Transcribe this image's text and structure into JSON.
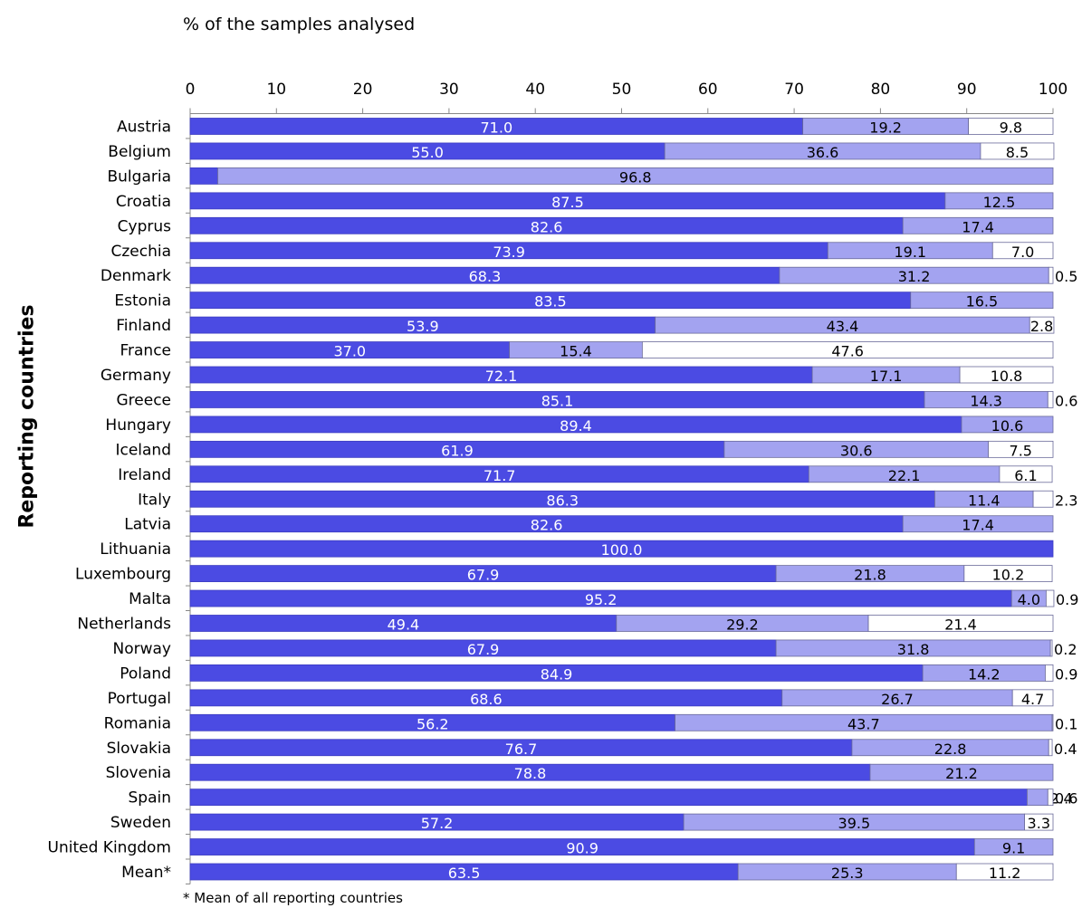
{
  "chart_data": {
    "type": "bar",
    "orientation": "horizontal",
    "stacked": true,
    "title": "",
    "xlabel": "% of the samples analysed",
    "ylabel": "Reporting countries",
    "xlim": [
      0,
      100
    ],
    "xticks": [
      0,
      10,
      20,
      30,
      40,
      50,
      60,
      70,
      80,
      90,
      100
    ],
    "grid": false,
    "legend": "none",
    "footnote": "* Mean of all reporting countries",
    "categories": [
      "Austria",
      "Belgium",
      "Bulgaria",
      "Croatia",
      "Cyprus",
      "Czechia",
      "Denmark",
      "Estonia",
      "Finland",
      "France",
      "Germany",
      "Greece",
      "Hungary",
      "Iceland",
      "Ireland",
      "Italy",
      "Latvia",
      "Lithuania",
      "Luxembourg",
      "Malta",
      "Netherlands",
      "Norway",
      "Poland",
      "Portugal",
      "Romania",
      "Slovakia",
      "Slovenia",
      "Spain",
      "Sweden",
      "United Kingdom",
      "Mean*"
    ],
    "series": [
      {
        "color": "#4b4be3",
        "values": [
          71.0,
          55.0,
          3.2,
          87.5,
          82.6,
          73.9,
          68.3,
          83.5,
          53.9,
          37.0,
          72.1,
          85.1,
          89.4,
          61.9,
          71.7,
          86.3,
          82.6,
          100.0,
          67.9,
          95.2,
          49.4,
          67.9,
          84.9,
          68.6,
          56.2,
          76.7,
          78.8,
          97.0,
          57.2,
          90.9,
          63.5
        ],
        "labels": [
          "71.0",
          "55.0",
          "",
          "87.5",
          "82.6",
          "73.9",
          "68.3",
          "83.5",
          "53.9",
          "37.0",
          "72.1",
          "85.1",
          "89.4",
          "61.9",
          "71.7",
          "86.3",
          "82.6",
          "100.0",
          "67.9",
          "95.2",
          "49.4",
          "67.9",
          "84.9",
          "68.6",
          "56.2",
          "76.7",
          "78.8",
          "",
          "57.2",
          "90.9",
          "63.5"
        ]
      },
      {
        "color": "#a3a3f0",
        "values": [
          19.2,
          36.6,
          96.8,
          12.5,
          17.4,
          19.1,
          31.2,
          16.5,
          43.4,
          15.4,
          17.1,
          14.3,
          10.6,
          30.6,
          22.1,
          11.4,
          17.4,
          0,
          21.8,
          4.0,
          29.2,
          31.8,
          14.2,
          26.7,
          43.7,
          22.8,
          21.2,
          2.4,
          39.5,
          9.1,
          25.3
        ],
        "labels": [
          "19.2",
          "36.6",
          "96.8",
          "12.5",
          "17.4",
          "19.1",
          "31.2",
          "16.5",
          "43.4",
          "15.4",
          "17.1",
          "14.3",
          "10.6",
          "30.6",
          "22.1",
          "11.4",
          "17.4",
          "",
          "21.8",
          "4.0",
          "29.2",
          "31.8",
          "14.2",
          "26.7",
          "43.7",
          "22.8",
          "21.2",
          "2.4",
          "39.5",
          "9.1",
          "25.3"
        ]
      },
      {
        "color": "#ffffff",
        "values": [
          9.8,
          8.5,
          0,
          0,
          0,
          7.0,
          0.5,
          0,
          2.8,
          47.6,
          10.8,
          0.6,
          0,
          7.5,
          6.1,
          2.3,
          0,
          0,
          10.2,
          0.9,
          21.4,
          0.2,
          0.9,
          4.7,
          0.1,
          0.4,
          0,
          0.6,
          3.3,
          0,
          11.2
        ],
        "labels": [
          "9.8",
          "8.5",
          "",
          "",
          "",
          "7.0",
          "0.5",
          "",
          "2.8",
          "47.6",
          "10.8",
          "0.6",
          "",
          "7.5",
          "6.1",
          "2.3",
          "",
          "",
          "10.2",
          "0.9",
          "21.4",
          "0.2",
          "0.9",
          "4.7",
          "0.1",
          "0.4",
          "",
          "0.6",
          "3.3",
          "",
          "11.2"
        ]
      }
    ]
  }
}
